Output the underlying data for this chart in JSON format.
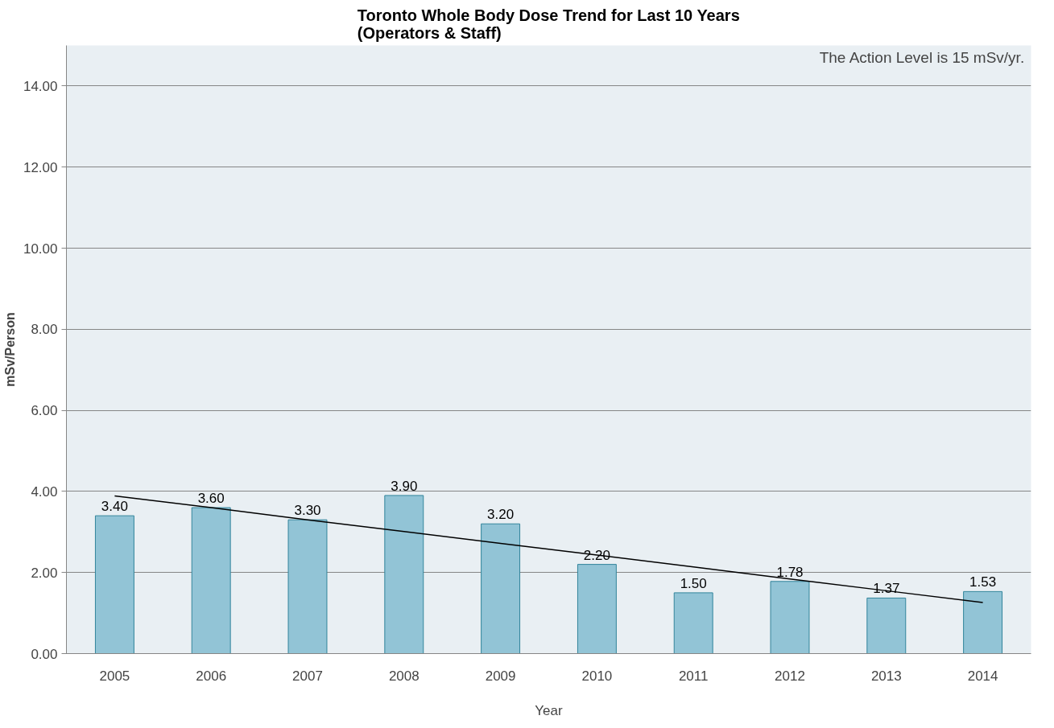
{
  "chart_data": {
    "type": "bar",
    "title": "Toronto Whole Body Dose Trend for Last 10 Years\n(Operators & Staff)",
    "xlabel": "Year",
    "ylabel": "mSv/Person",
    "categories": [
      "2005",
      "2006",
      "2007",
      "2008",
      "2009",
      "2010",
      "2011",
      "2012",
      "2013",
      "2014"
    ],
    "series": [
      {
        "color": "#92c4d6",
        "values": [
          3.4,
          3.6,
          3.3,
          3.9,
          3.2,
          2.2,
          1.5,
          1.78,
          1.37,
          1.53
        ],
        "value_labels": [
          "3.40",
          "3.60",
          "3.30",
          "3.90",
          "3.20",
          "2.20",
          "1.50",
          "1.78",
          "1.37",
          "1.53"
        ]
      },
      {
        "type": "line",
        "color": "#000000",
        "values": [
          3.89,
          3.6,
          3.3,
          3.01,
          2.72,
          2.43,
          2.14,
          1.84,
          1.55,
          1.26
        ]
      }
    ],
    "ylim": [
      0,
      15
    ],
    "yticks": [
      {
        "value": 0,
        "label": "0.00"
      },
      {
        "value": 2,
        "label": "2.00"
      },
      {
        "value": 4,
        "label": "4.00"
      },
      {
        "value": 6,
        "label": "6.00"
      },
      {
        "value": 8,
        "label": "8.00"
      },
      {
        "value": 10,
        "label": "10.00"
      },
      {
        "value": 12,
        "label": "12.00"
      },
      {
        "value": 14,
        "label": "14.00"
      }
    ],
    "grid": "y",
    "annotations": [
      "The Action Level  is 15 mSv/yr."
    ]
  }
}
